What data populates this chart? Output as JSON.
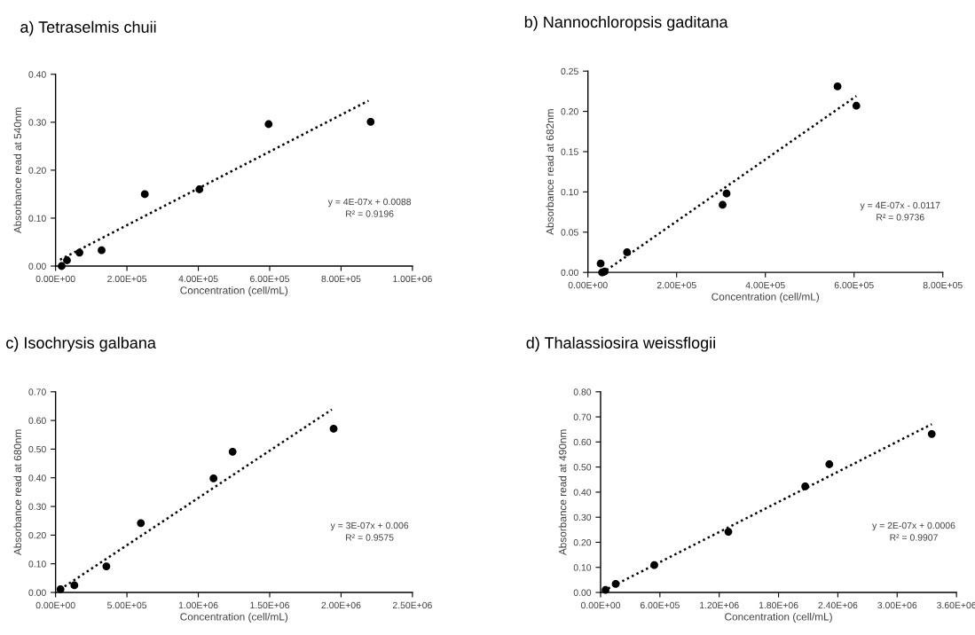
{
  "chart_data": [
    {
      "type": "scatter",
      "title": "a) Tetraselmis chuii",
      "xlabel": "Concentration (cell/mL)",
      "ylabel": "Absorbance read at 540nm",
      "annotations": [
        "y = 4E-07x + 0.0088\nR² = 0.9196"
      ],
      "series": [
        {
          "color": "#000000",
          "marker": "circle",
          "x": [
            17000,
            32000,
            67000,
            129000,
            250000,
            403000,
            597000,
            883000
          ],
          "values": [
            0.0,
            0.012,
            0.028,
            0.033,
            0.15,
            0.16,
            0.296,
            0.301
          ]
        },
        {
          "type": "line",
          "color": "#000000",
          "line_style": "dotted",
          "marker": "none",
          "x": [
            12000,
            877000
          ],
          "values": [
            0.013,
            0.345
          ]
        }
      ],
      "xlim": [
        0,
        1000000
      ],
      "xticks": [
        {
          "value": 0,
          "label": "0.00E+00"
        },
        {
          "value": 200000,
          "label": "2.00E+05"
        },
        {
          "value": 400000,
          "label": "4.00E+05"
        },
        {
          "value": 600000,
          "label": "6.00E+05"
        },
        {
          "value": 800000,
          "label": "8.00E+05"
        },
        {
          "value": 1000000,
          "label": "1.00E+06"
        }
      ],
      "ylim": [
        0,
        0.4
      ],
      "yticks": [
        {
          "value": 0,
          "label": "0.00"
        },
        {
          "value": 0.1,
          "label": "0.10"
        },
        {
          "value": 0.2,
          "label": "0.20"
        },
        {
          "value": 0.3,
          "label": "0.30"
        },
        {
          "value": 0.4,
          "label": "0.40"
        }
      ],
      "grid": false
    },
    {
      "type": "scatter",
      "title": "b) Nannochloropsis gaditana",
      "xlabel": "Concentration (cell/mL)",
      "ylabel": "Absorbance read at 682nm",
      "annotations": [
        "y = 4E-07x - 0.0117\nR² = 0.9736"
      ],
      "series": [
        {
          "color": "#000000",
          "marker": "circle",
          "x": [
            28700,
            32000,
            37600,
            88200,
            303600,
            312500,
            562700,
            605100
          ],
          "values": [
            0.011,
            0.0,
            0.001,
            0.025,
            0.084,
            0.098,
            0.231,
            0.207
          ]
        },
        {
          "type": "line",
          "color": "#000000",
          "line_style": "dotted",
          "marker": "none",
          "x": [
            39700,
            605100
          ],
          "values": [
            0.002,
            0.219
          ]
        }
      ],
      "xlim": [
        0,
        800000
      ],
      "xticks": [
        {
          "value": 0,
          "label": "0.00E+00"
        },
        {
          "value": 200000,
          "label": "2.00E+05"
        },
        {
          "value": 400000,
          "label": "4.00E+05"
        },
        {
          "value": 600000,
          "label": "6.00E+05"
        },
        {
          "value": 800000,
          "label": "8.00E+05"
        }
      ],
      "ylim": [
        0,
        0.25
      ],
      "yticks": [
        {
          "value": 0,
          "label": "0.00"
        },
        {
          "value": 0.05,
          "label": "0.05"
        },
        {
          "value": 0.1,
          "label": "0.10"
        },
        {
          "value": 0.15,
          "label": "0.15"
        },
        {
          "value": 0.2,
          "label": "0.20"
        },
        {
          "value": 0.25,
          "label": "0.25"
        }
      ],
      "grid": false
    },
    {
      "type": "scatter",
      "title": "c) Isochrysis galbana",
      "xlabel": "Concentration (cell/mL)",
      "ylabel": "Absorbance read at 680nm",
      "annotations": [
        "y = 3E-07x + 0.006\nR² = 0.9575"
      ],
      "series": [
        {
          "color": "#000000",
          "marker": "circle",
          "x": [
            34500,
            131600,
            355900,
            597500,
            1106600,
            1240300,
            1948000
          ],
          "values": [
            0.011,
            0.025,
            0.091,
            0.242,
            0.398,
            0.491,
            0.571
          ]
        },
        {
          "type": "line",
          "color": "#000000",
          "line_style": "dotted",
          "marker": "none",
          "x": [
            15000,
            1935000
          ],
          "values": [
            0.005,
            0.638
          ]
        }
      ],
      "xlim": [
        0,
        2500000
      ],
      "xticks": [
        {
          "value": 0,
          "label": "0.00E+00"
        },
        {
          "value": 500000,
          "label": "5.00E+05"
        },
        {
          "value": 1000000,
          "label": "1.00E+06"
        },
        {
          "value": 1500000,
          "label": "1.50E+06"
        },
        {
          "value": 2000000,
          "label": "2.00E+06"
        },
        {
          "value": 2500000,
          "label": "2.50E+06"
        }
      ],
      "ylim": [
        0,
        0.7
      ],
      "yticks": [
        {
          "value": 0,
          "label": "0.00"
        },
        {
          "value": 0.1,
          "label": "0.10"
        },
        {
          "value": 0.2,
          "label": "0.20"
        },
        {
          "value": 0.3,
          "label": "0.30"
        },
        {
          "value": 0.4,
          "label": "0.40"
        },
        {
          "value": 0.5,
          "label": "0.50"
        },
        {
          "value": 0.6,
          "label": "0.60"
        },
        {
          "value": 0.7,
          "label": "0.70"
        }
      ],
      "grid": false
    },
    {
      "type": "scatter",
      "title": "d) Thalassiosira weissflogii",
      "xlabel": "Concentration (cell/mL)",
      "ylabel": "Absorbance read at 490nm",
      "annotations": [
        "y = 2E-07x + 0.0006\nR² = 0.9907"
      ],
      "series": [
        {
          "color": "#000000",
          "marker": "circle",
          "x": [
            50000,
            153000,
            543000,
            1292600,
            2070000,
            2313600,
            3350000
          ],
          "values": [
            0.01,
            0.034,
            0.109,
            0.242,
            0.423,
            0.511,
            0.632
          ]
        },
        {
          "type": "line",
          "color": "#000000",
          "line_style": "dotted",
          "marker": "none",
          "x": [
            15600,
            3350000
          ],
          "values": [
            0.004,
            0.671
          ]
        }
      ],
      "xlim": [
        0,
        3600000
      ],
      "xticks": [
        {
          "value": 0,
          "label": "0.00E+00"
        },
        {
          "value": 600000,
          "label": "6.00E+05"
        },
        {
          "value": 1200000,
          "label": "1.20E+06"
        },
        {
          "value": 1800000,
          "label": "1.80E+06"
        },
        {
          "value": 2400000,
          "label": "2.40E+06"
        },
        {
          "value": 3000000,
          "label": "3.00E+06"
        },
        {
          "value": 3600000,
          "label": "3.60E+06"
        }
      ],
      "ylim": [
        0,
        0.8
      ],
      "yticks": [
        {
          "value": 0,
          "label": "0.00"
        },
        {
          "value": 0.1,
          "label": "0.10"
        },
        {
          "value": 0.2,
          "label": "0.20"
        },
        {
          "value": 0.3,
          "label": "0.30"
        },
        {
          "value": 0.4,
          "label": "0.40"
        },
        {
          "value": 0.5,
          "label": "0.50"
        },
        {
          "value": 0.6,
          "label": "0.60"
        },
        {
          "value": 0.7,
          "label": "0.70"
        },
        {
          "value": 0.8,
          "label": "0.80"
        }
      ],
      "grid": false
    }
  ]
}
